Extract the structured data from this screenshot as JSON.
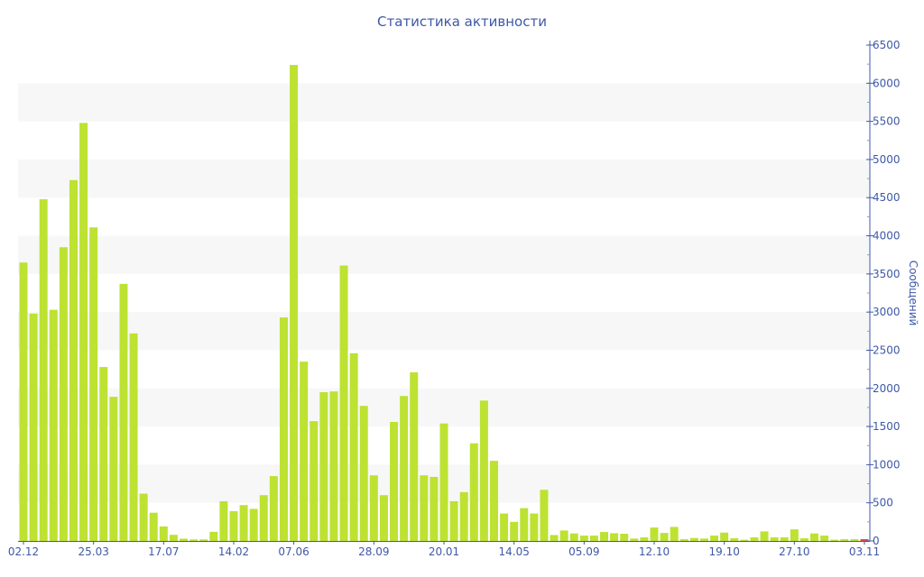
{
  "chart_data": {
    "type": "bar",
    "title": "Статистика активности",
    "xlabel": "",
    "ylabel": "Сообщений",
    "ylim": [
      0,
      6500
    ],
    "y_ticks": [
      0,
      500,
      1000,
      1500,
      2000,
      2500,
      3000,
      3500,
      4000,
      4500,
      5000,
      5500,
      6000,
      6500
    ],
    "y_axis_position": "right",
    "grid": "alternating horizontal bands",
    "bar_color": "#bde232",
    "highlight_color": "#e8463c",
    "title_color": "#3e58a8",
    "x_tick_labels": [
      {
        "index": 0,
        "label": "02.12"
      },
      {
        "index": 7,
        "label": "25.03"
      },
      {
        "index": 14,
        "label": "17.07"
      },
      {
        "index": 21,
        "label": "14.02"
      },
      {
        "index": 27,
        "label": "07.06"
      },
      {
        "index": 35,
        "label": "28.09"
      },
      {
        "index": 42,
        "label": "20.01"
      },
      {
        "index": 49,
        "label": "14.05"
      },
      {
        "index": 56,
        "label": "05.09"
      },
      {
        "index": 63,
        "label": "12.10"
      },
      {
        "index": 70,
        "label": "19.10"
      },
      {
        "index": 77,
        "label": "27.10"
      },
      {
        "index": 84,
        "label": "03.11"
      }
    ],
    "values": [
      3650,
      2980,
      4480,
      3030,
      3850,
      4730,
      5480,
      4110,
      2280,
      1890,
      3370,
      2720,
      620,
      370,
      190,
      80,
      30,
      20,
      20,
      120,
      520,
      390,
      470,
      420,
      600,
      850,
      2930,
      6240,
      2350,
      1570,
      1950,
      1960,
      3610,
      2460,
      1770,
      860,
      600,
      1560,
      1900,
      2210,
      860,
      840,
      1540,
      520,
      640,
      1280,
      1840,
      1050,
      360,
      250,
      430,
      360,
      670,
      78,
      137,
      98,
      70,
      70,
      117,
      101,
      94,
      31,
      47,
      176,
      105,
      184,
      23,
      39,
      31,
      70,
      109,
      35,
      16,
      47,
      125,
      47,
      47,
      152,
      35,
      98,
      70,
      16,
      23,
      23,
      23
    ],
    "highlight_last": true
  }
}
